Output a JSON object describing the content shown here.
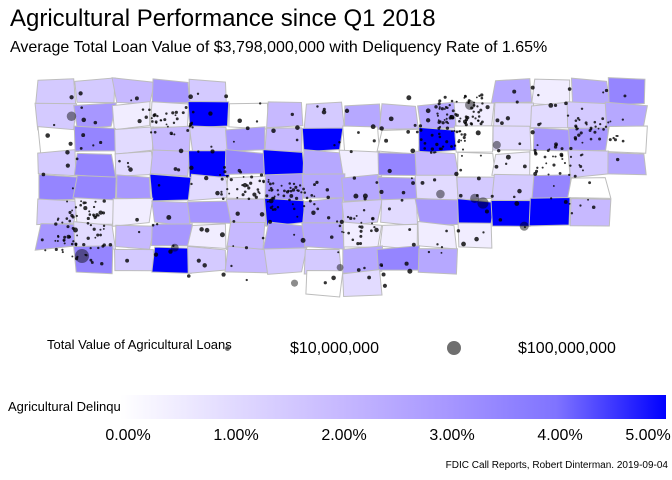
{
  "title": "Agricultural Performance since Q1 2018",
  "subtitle": "Average Total Loan Value of $3,798,000,000 with Deliquency Rate of 1.65%",
  "size_legend": {
    "title": "Total Value of Agricultural Loans",
    "small_label": "$10,000,000",
    "large_label": "$100,000,000"
  },
  "color_legend": {
    "title": "Agricultural Delinquency Rate",
    "ticks": [
      "0.00%",
      "1.00%",
      "2.00%",
      "3.00%",
      "4.00%",
      "5.00%"
    ],
    "colors": [
      "#ffffff",
      "#0000ff"
    ]
  },
  "caption": "FDIC Call Reports, Robert Dinterman. 2019-09-04",
  "map": {
    "region_outline_color": "#bdbdbd",
    "dot_color": "#000000"
  }
}
